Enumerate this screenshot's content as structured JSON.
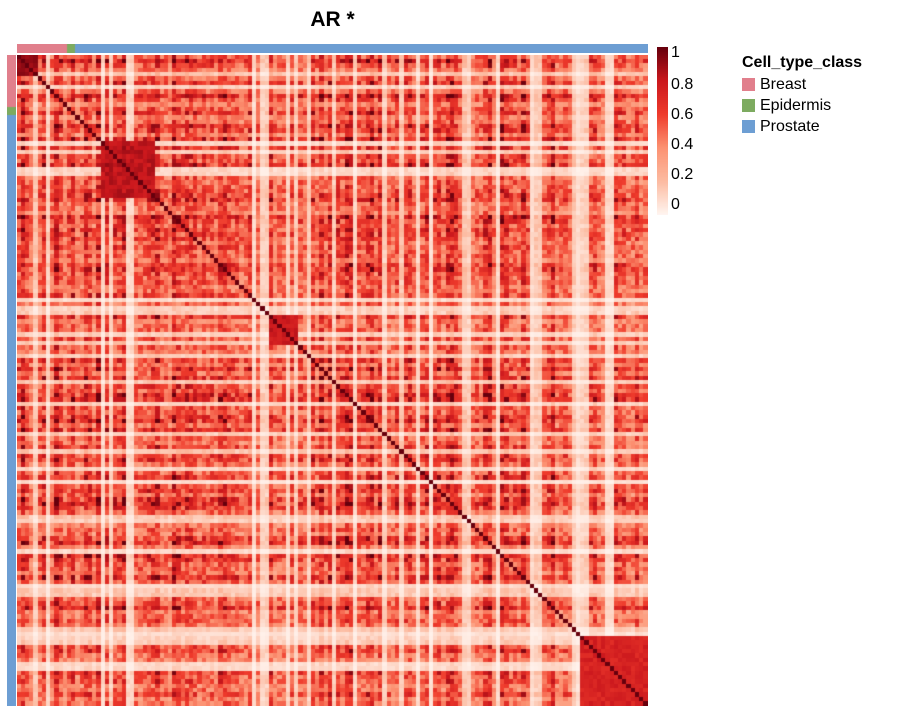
{
  "chart_data": {
    "type": "heatmap",
    "title": "AR *",
    "n": 150,
    "seed": 13,
    "value_range": [
      0,
      1
    ],
    "colorbar": {
      "ticks": [
        "1",
        "0.8",
        "0.6",
        "0.4",
        "0.2",
        "0"
      ],
      "stops": [
        "#fff5f0",
        "#fcbba1",
        "#fc9272",
        "#ef3b2c",
        "#cb181d",
        "#67000d"
      ]
    },
    "legend": {
      "title": "Cell_type_class",
      "items": [
        {
          "label": "Breast",
          "color": "#e17f8c"
        },
        {
          "label": "Epidermis",
          "color": "#7dab60"
        },
        {
          "label": "Prostate",
          "color": "#6d9ed3"
        }
      ]
    },
    "groups": [
      {
        "name": "Breast",
        "count": 12
      },
      {
        "name": "Epidermis",
        "count": 2
      },
      {
        "name": "Prostate",
        "count": 136
      }
    ],
    "blocks": [
      {
        "range": [
          0,
          4
        ],
        "strength": 0.95
      },
      {
        "range": [
          20,
          32
        ],
        "strength": 0.88
      },
      {
        "range": [
          60,
          66
        ],
        "strength": 0.85
      },
      {
        "range": [
          134,
          149
        ],
        "strength": 0.8
      }
    ]
  }
}
